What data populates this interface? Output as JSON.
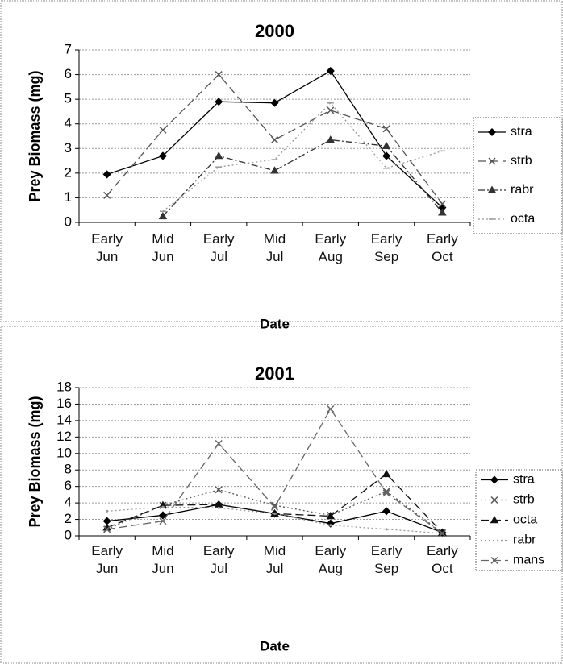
{
  "chart_data": [
    {
      "type": "line",
      "title": "2000",
      "y_label": "Prey Biomass (mg)",
      "x_label": "Date",
      "categories": [
        "Early Jun",
        "Mid Jun",
        "Early Jul",
        "Mid Jul",
        "Early Aug",
        "Early Sep",
        "Early Oct"
      ],
      "ylim": [
        0,
        7
      ],
      "yticks": [
        0,
        1,
        2,
        3,
        4,
        5,
        6,
        7
      ],
      "grid": true,
      "legend": "right",
      "series": [
        {
          "name": "stra",
          "color": "#000000",
          "dash": "solid",
          "marker": "diamond",
          "values": [
            1.95,
            2.7,
            4.9,
            4.85,
            6.15,
            2.7,
            0.6
          ]
        },
        {
          "name": "strb",
          "color": "#555555",
          "dash": "dashed",
          "marker": "x",
          "values": [
            1.1,
            3.75,
            6.0,
            3.35,
            4.55,
            3.8,
            0.75
          ]
        },
        {
          "name": "rabr",
          "color": "#333333",
          "dash": "dashdot",
          "marker": "triangle",
          "values": [
            null,
            0.25,
            2.7,
            2.1,
            3.35,
            3.1,
            0.4
          ]
        },
        {
          "name": "octa",
          "color": "#999999",
          "dash": "dotted",
          "marker": "tick",
          "values": [
            null,
            0.45,
            2.25,
            2.55,
            4.85,
            2.2,
            2.9
          ]
        }
      ]
    },
    {
      "type": "line",
      "title": "2001",
      "y_label": "Prey Biomass (mg)",
      "x_label": "Date",
      "categories": [
        "Early Jun",
        "Mid Jun",
        "Early Jul",
        "Mid Jul",
        "Early Aug",
        "Early Sep",
        "Early Oct"
      ],
      "ylim": [
        0,
        18
      ],
      "yticks": [
        0,
        2,
        4,
        6,
        8,
        10,
        12,
        14,
        16,
        18
      ],
      "grid": true,
      "legend": "right",
      "series": [
        {
          "name": "stra",
          "color": "#000000",
          "dash": "solid",
          "marker": "diamond",
          "values": [
            1.8,
            2.5,
            3.8,
            2.7,
            1.5,
            3.0,
            0.4
          ]
        },
        {
          "name": "strb",
          "color": "#555555",
          "dash": "dotted",
          "marker": "x",
          "values": [
            0.8,
            3.7,
            5.6,
            3.7,
            2.5,
            5.4,
            0.4
          ]
        },
        {
          "name": "octa",
          "color": "#111111",
          "dash": "dashed",
          "marker": "triangle",
          "values": [
            1.0,
            3.7,
            3.8,
            2.7,
            2.4,
            7.5,
            0.4
          ]
        },
        {
          "name": "rabr",
          "color": "#999999",
          "dash": "dotted",
          "marker": "none",
          "values": [
            3.0,
            3.5,
            3.4,
            2.7,
            1.3,
            0.8,
            0.3
          ]
        },
        {
          "name": "mans",
          "color": "#666666",
          "dash": "dashed",
          "marker": "x",
          "values": [
            0.8,
            1.8,
            11.2,
            3.5,
            15.4,
            5.2,
            0.3
          ]
        }
      ]
    }
  ]
}
